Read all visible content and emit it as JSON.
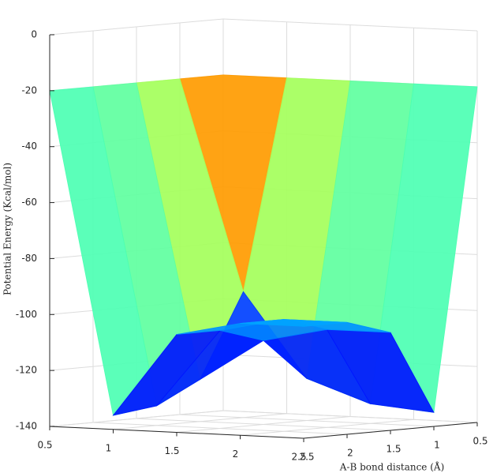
{
  "chart_data": {
    "type": "surface",
    "zlabel": "Potential Energy (Kcal/mol)",
    "ylabel": "A-B bond distance (Å)",
    "x": [
      0.5,
      1,
      1.5,
      2,
      2.5
    ],
    "y": [
      0.5,
      1,
      1.5,
      2,
      2.5
    ],
    "z": [
      [
        -20,
        -20,
        -20,
        -20,
        -20
      ],
      [
        -20,
        -95,
        -125,
        -133,
        -135
      ],
      [
        -20,
        -125,
        -110,
        -105,
        -105
      ],
      [
        -20,
        -133,
        -105,
        -100,
        -100
      ],
      [
        -20,
        -135,
        -105,
        -100,
        -100
      ]
    ],
    "xlim": [
      0.5,
      2.5
    ],
    "ylim": [
      0.5,
      2.5
    ],
    "zlim": [
      -140,
      0
    ],
    "xticks": [
      0.5,
      1,
      1.5,
      2,
      2.5
    ],
    "yticks": [
      0.5,
      1,
      1.5,
      2,
      2.5
    ],
    "zticks": [
      -140,
      -120,
      -100,
      -80,
      -60,
      -40,
      -20,
      0
    ],
    "colormap": "jet",
    "grid": true
  }
}
